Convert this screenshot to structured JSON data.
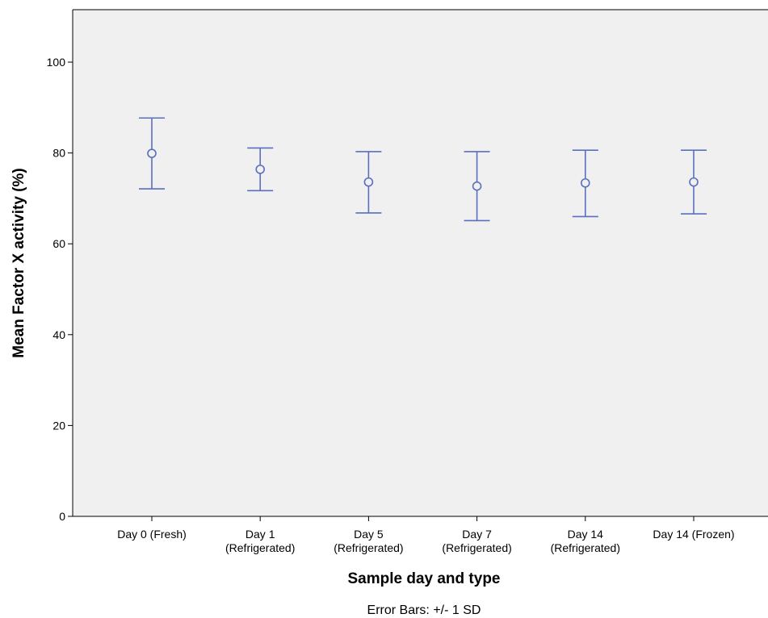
{
  "chart_data": {
    "type": "scatter",
    "subtype": "error-bar",
    "title": "",
    "xlabel": "Sample day and type",
    "ylabel": "Mean Factor X activity (%)",
    "ylim": [
      0,
      110
    ],
    "yticks": [
      0,
      20,
      40,
      60,
      80,
      100
    ],
    "categories": [
      [
        "Day 0 (Fresh)"
      ],
      [
        "Day 1",
        "(Refrigerated)"
      ],
      [
        "Day 5",
        "(Refrigerated)"
      ],
      [
        "Day 7",
        "(Refrigerated)"
      ],
      [
        "Day 14",
        "(Refrigerated)"
      ],
      [
        "Day 14 (Frozen)"
      ]
    ],
    "values": [
      79.9,
      76.4,
      73.6,
      72.7,
      73.4,
      73.6
    ],
    "error_low": [
      72.1,
      71.7,
      66.8,
      65.1,
      66.0,
      66.6
    ],
    "error_high": [
      87.7,
      81.1,
      80.3,
      80.3,
      80.6,
      80.6
    ],
    "error_bar_note": "Error Bars: +/- 1 SD",
    "grid": false,
    "colors": {
      "series": "#5a6fc0",
      "plot_background": "#f0f0f0",
      "axis": "#000000"
    }
  }
}
